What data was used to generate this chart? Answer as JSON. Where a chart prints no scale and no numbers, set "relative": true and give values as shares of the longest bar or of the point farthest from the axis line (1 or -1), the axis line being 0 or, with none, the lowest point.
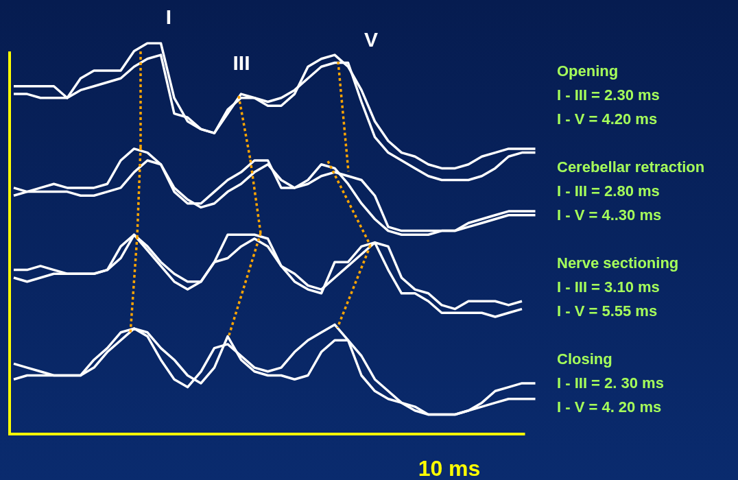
{
  "chart_data": {
    "type": "line",
    "relative": true,
    "grid": false,
    "legend": false,
    "marker": "none",
    "xlabel": "10 ms",
    "annotations": [
      "I",
      "III",
      "V",
      "Opening",
      "I - III = 2.30 ms",
      "I - V = 4.20 ms",
      "Cerebellar retraction",
      "I - III = 2.80 ms",
      "I - V = 4..30 ms",
      "Nerve sectioning",
      "I - III = 3.10 ms",
      "I - V = 5.55 ms",
      "Closing",
      "I - III = 2. 30 ms",
      "I - V = 4. 20 ms"
    ],
    "categories": [
      null,
      null,
      null,
      null,
      null,
      null,
      null,
      null,
      null,
      null,
      null,
      null,
      null,
      null,
      null,
      null,
      null,
      null,
      null,
      null,
      null,
      null,
      null,
      null,
      null,
      null,
      null,
      null,
      null,
      null,
      null,
      null,
      null,
      null,
      null,
      null,
      null,
      null,
      null,
      null
    ],
    "series": [
      {
        "color": "#ffffff",
        "values": [
          0.89,
          0.89,
          0.89,
          0.89,
          0.86,
          0.91,
          0.93,
          0.93,
          0.93,
          0.98,
          1.0,
          1.0,
          0.86,
          0.8,
          0.78,
          0.77,
          0.82,
          0.87,
          0.86,
          0.84,
          0.84,
          0.87,
          0.94,
          0.96,
          0.97,
          0.94,
          0.88,
          0.8,
          0.75,
          0.72,
          0.71,
          0.69,
          0.68,
          0.68,
          0.69,
          0.71,
          0.72,
          0.73,
          0.73,
          0.73
        ]
      },
      {
        "color": "#ffffff",
        "values": [
          0.87,
          0.87,
          0.86,
          0.86,
          0.86,
          0.88,
          0.89,
          0.9,
          0.91,
          0.94,
          0.96,
          0.97,
          0.82,
          0.81,
          0.78,
          0.77,
          0.83,
          0.86,
          0.86,
          0.85,
          0.86,
          0.88,
          0.91,
          0.94,
          0.95,
          0.95,
          0.85,
          0.76,
          0.72,
          0.7,
          0.68,
          0.66,
          0.65,
          0.65,
          0.65,
          0.66,
          0.68,
          0.71,
          0.72,
          0.72
        ]
      },
      {
        "color": "#ffffff",
        "values": [
          0.61,
          0.62,
          0.63,
          0.64,
          0.63,
          0.63,
          0.63,
          0.64,
          0.7,
          0.73,
          0.72,
          0.69,
          0.62,
          0.59,
          0.59,
          0.62,
          0.65,
          0.67,
          0.7,
          0.7,
          0.63,
          0.63,
          0.65,
          0.69,
          0.68,
          0.64,
          0.59,
          0.55,
          0.52,
          0.51,
          0.51,
          0.51,
          0.52,
          0.52,
          0.54,
          0.55,
          0.56,
          0.57,
          0.57,
          0.57
        ]
      },
      {
        "color": "#ffffff",
        "values": [
          0.63,
          0.62,
          0.62,
          0.62,
          0.62,
          0.61,
          0.61,
          0.62,
          0.63,
          0.67,
          0.7,
          0.69,
          0.63,
          0.6,
          0.58,
          0.59,
          0.62,
          0.64,
          0.67,
          0.69,
          0.65,
          0.63,
          0.64,
          0.66,
          0.67,
          0.66,
          0.65,
          0.61,
          0.53,
          0.52,
          0.52,
          0.52,
          0.52,
          0.52,
          0.53,
          0.54,
          0.55,
          0.56,
          0.56,
          0.56
        ]
      },
      {
        "color": "#ffffff",
        "values": [
          0.42,
          0.42,
          0.43,
          0.42,
          0.41,
          0.41,
          0.41,
          0.42,
          0.45,
          0.51,
          0.48,
          0.44,
          0.41,
          0.39,
          0.39,
          0.44,
          0.51,
          0.51,
          0.51,
          0.5,
          0.43,
          0.39,
          0.37,
          0.36,
          0.44,
          0.44,
          0.48,
          0.49,
          0.48,
          0.4,
          0.37,
          0.36,
          0.33,
          0.32,
          0.34,
          0.34,
          0.34,
          0.33,
          0.34,
          null
        ]
      },
      {
        "color": "#ffffff",
        "values": [
          0.4,
          0.39,
          0.4,
          0.41,
          0.41,
          0.41,
          0.41,
          0.42,
          0.48,
          0.51,
          0.47,
          0.43,
          0.39,
          0.37,
          0.39,
          0.44,
          0.45,
          0.48,
          0.5,
          0.48,
          0.43,
          0.41,
          0.38,
          0.37,
          0.4,
          0.43,
          0.46,
          0.49,
          0.42,
          0.36,
          0.36,
          0.34,
          0.31,
          0.31,
          0.31,
          0.31,
          0.3,
          0.31,
          0.32,
          null
        ]
      },
      {
        "color": "#ffffff",
        "values": [
          0.18,
          0.17,
          0.16,
          0.15,
          0.15,
          0.15,
          0.17,
          0.21,
          0.24,
          0.27,
          0.26,
          0.22,
          0.19,
          0.15,
          0.13,
          0.17,
          0.25,
          0.19,
          0.16,
          0.15,
          0.15,
          0.14,
          0.15,
          0.21,
          0.24,
          0.24,
          0.2,
          0.14,
          0.11,
          0.08,
          0.07,
          0.05,
          0.05,
          0.05,
          0.06,
          0.07,
          0.08,
          0.09,
          0.09,
          0.09
        ]
      },
      {
        "color": "#ffffff",
        "values": [
          0.14,
          0.15,
          0.15,
          0.15,
          0.15,
          0.15,
          0.19,
          0.22,
          0.26,
          0.27,
          0.25,
          0.19,
          0.14,
          0.12,
          0.16,
          0.22,
          0.23,
          0.2,
          0.17,
          0.16,
          0.17,
          0.21,
          0.24,
          0.26,
          0.28,
          0.24,
          0.15,
          0.11,
          0.09,
          0.08,
          0.06,
          0.05,
          0.05,
          0.05,
          0.06,
          0.08,
          0.11,
          0.12,
          0.13,
          0.13
        ]
      }
    ]
  }
}
